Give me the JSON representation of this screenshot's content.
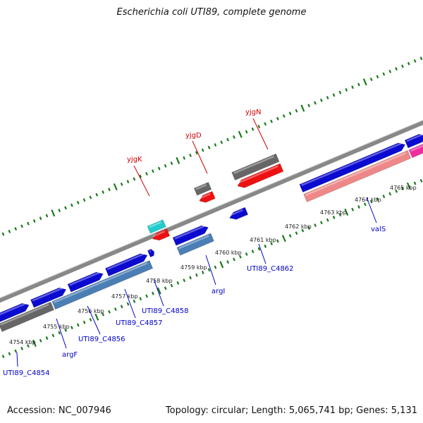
{
  "title": "Escherichia coli UTI89, complete genome",
  "footer": {
    "accession": "Accession: NC_007946",
    "topology": "Topology: circular; Length: 5,065,741 bp; Genes: 5,131"
  },
  "colors": {
    "backbone": "#888888",
    "tick": "#1a7a1a",
    "forward_cds": "#0a0ad0",
    "forward_gene": "#4a7eb5",
    "reverse_cds": "#ee1111",
    "reverse_gene": "#ee8888",
    "gray_gene": "#666666",
    "cyan_gene": "#22cccc",
    "magenta_gene": "#ee2ea0",
    "label_blue": "#0000cc",
    "label_red": "#cc0000"
  },
  "scale_labels": [
    "4754 kbp",
    "4755 kbp",
    "4756 kbp",
    "4757 kbp",
    "4758 kbp",
    "4759 kbp",
    "4760 kbp",
    "4761 kbp",
    "4762 kbp",
    "4763 kbp",
    "4764 kbp",
    "4765 kbp"
  ],
  "gene_labels": [
    {
      "text": "yjgK",
      "color": "red"
    },
    {
      "text": "yjgD",
      "color": "red"
    },
    {
      "text": "yjgN",
      "color": "red"
    },
    {
      "text": "UTI89_C4854",
      "color": "blue"
    },
    {
      "text": "argF",
      "color": "blue"
    },
    {
      "text": "UTI89_C4856",
      "color": "blue"
    },
    {
      "text": "UTI89_C4857",
      "color": "blue"
    },
    {
      "text": "UTI89_C4858",
      "color": "blue"
    },
    {
      "text": "argI",
      "color": "blue"
    },
    {
      "text": "UTI89_C4862",
      "color": "blue"
    },
    {
      "text": "valS",
      "color": "blue"
    }
  ]
}
